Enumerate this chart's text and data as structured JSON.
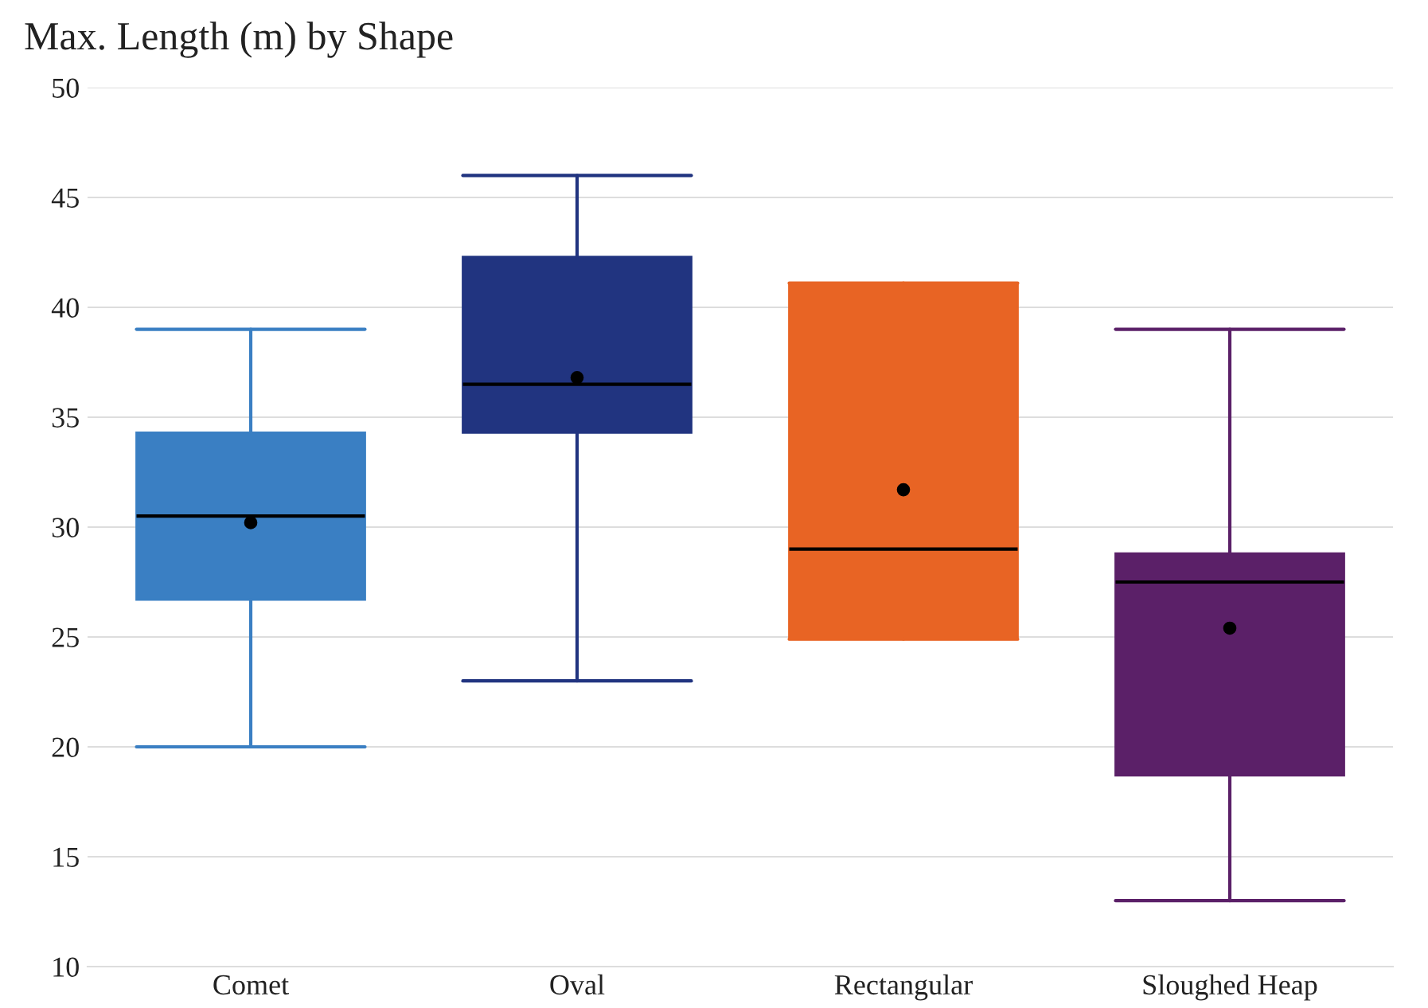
{
  "chart_data": {
    "type": "box",
    "title": "Max. Length (m) by Shape",
    "categories": [
      "Comet",
      "Oval",
      "Rectangular",
      "Sloughed Heap"
    ],
    "colors": [
      "#3a7fc3",
      "#213480",
      "#e86424",
      "#5b2068"
    ],
    "boxes": [
      {
        "low": 20,
        "q1": 26.7,
        "median": 30.5,
        "q3": 34.3,
        "high": 39,
        "mean": 30.2
      },
      {
        "low": 23,
        "q1": 34.3,
        "median": 36.5,
        "q3": 42.3,
        "high": 46,
        "mean": 36.8
      },
      {
        "low": 24.9,
        "q1": 24.9,
        "median": 29.0,
        "q3": 41.1,
        "high": 41.1,
        "mean": 31.7
      },
      {
        "low": 13,
        "q1": 18.7,
        "median": 27.5,
        "q3": 28.8,
        "high": 39,
        "mean": 25.4
      }
    ],
    "ylim": [
      10,
      50
    ],
    "yticks": [
      10,
      15,
      20,
      25,
      30,
      35,
      40,
      45,
      50
    ],
    "grid": "y",
    "legend": false
  }
}
